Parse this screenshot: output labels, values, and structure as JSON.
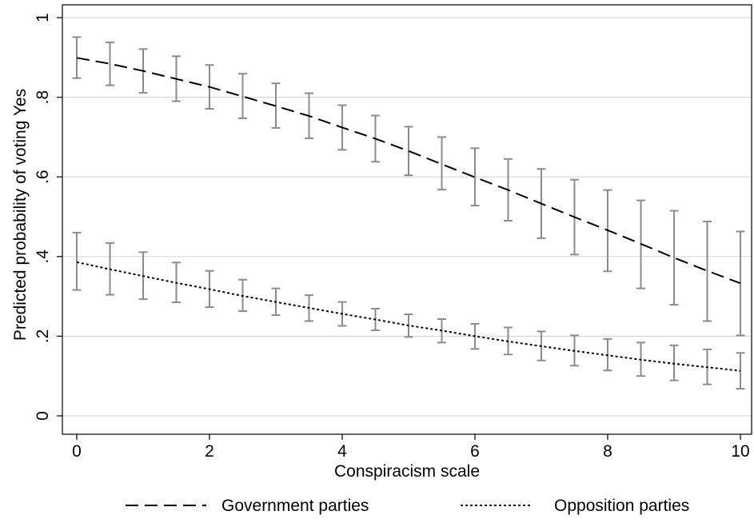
{
  "chart_data": {
    "type": "line",
    "xlabel": "Conspiracism scale",
    "ylabel": "Predicted probability of voting Yes",
    "xlim": [
      0,
      10
    ],
    "ylim": [
      0,
      1
    ],
    "x_ticks": [
      "0",
      "2",
      "4",
      "6",
      "8",
      "10"
    ],
    "y_ticks": [
      "0",
      ".2",
      ".4",
      ".6",
      ".8",
      "1"
    ],
    "y_tick_values": [
      0,
      0.2,
      0.4,
      0.6,
      0.8,
      1
    ],
    "x_tick_values": [
      0,
      2,
      4,
      6,
      8,
      10
    ],
    "grid": true,
    "legend_position": "bottom",
    "x": [
      0,
      0.5,
      1,
      1.5,
      2,
      2.5,
      3,
      3.5,
      4,
      4.5,
      5,
      5.5,
      6,
      6.5,
      7,
      7.5,
      8,
      8.5,
      9,
      9.5,
      10
    ],
    "series": [
      {
        "name": "Government parties",
        "line_style": "dashed",
        "values": [
          0.899,
          0.884,
          0.866,
          0.846,
          0.826,
          0.802,
          0.778,
          0.753,
          0.724,
          0.696,
          0.665,
          0.632,
          0.599,
          0.567,
          0.533,
          0.499,
          0.466,
          0.432,
          0.397,
          0.364,
          0.333
        ],
        "lower": [
          0.848,
          0.83,
          0.811,
          0.79,
          0.771,
          0.747,
          0.723,
          0.697,
          0.668,
          0.638,
          0.604,
          0.568,
          0.528,
          0.49,
          0.446,
          0.405,
          0.363,
          0.32,
          0.279,
          0.238,
          0.202
        ],
        "upper": [
          0.951,
          0.938,
          0.921,
          0.903,
          0.881,
          0.859,
          0.835,
          0.81,
          0.78,
          0.754,
          0.726,
          0.7,
          0.672,
          0.645,
          0.62,
          0.593,
          0.567,
          0.541,
          0.515,
          0.488,
          0.463
        ]
      },
      {
        "name": "Opposition parties",
        "line_style": "dotted",
        "values": [
          0.386,
          0.368,
          0.351,
          0.334,
          0.318,
          0.301,
          0.286,
          0.271,
          0.256,
          0.242,
          0.227,
          0.214,
          0.2,
          0.187,
          0.175,
          0.163,
          0.152,
          0.141,
          0.131,
          0.122,
          0.113
        ],
        "lower": [
          0.316,
          0.304,
          0.293,
          0.285,
          0.273,
          0.263,
          0.253,
          0.238,
          0.226,
          0.215,
          0.198,
          0.184,
          0.168,
          0.154,
          0.139,
          0.126,
          0.114,
          0.1,
          0.089,
          0.079,
          0.068
        ],
        "upper": [
          0.46,
          0.434,
          0.411,
          0.385,
          0.364,
          0.342,
          0.32,
          0.303,
          0.286,
          0.269,
          0.255,
          0.243,
          0.231,
          0.222,
          0.212,
          0.202,
          0.193,
          0.184,
          0.177,
          0.167,
          0.158
        ]
      }
    ]
  }
}
